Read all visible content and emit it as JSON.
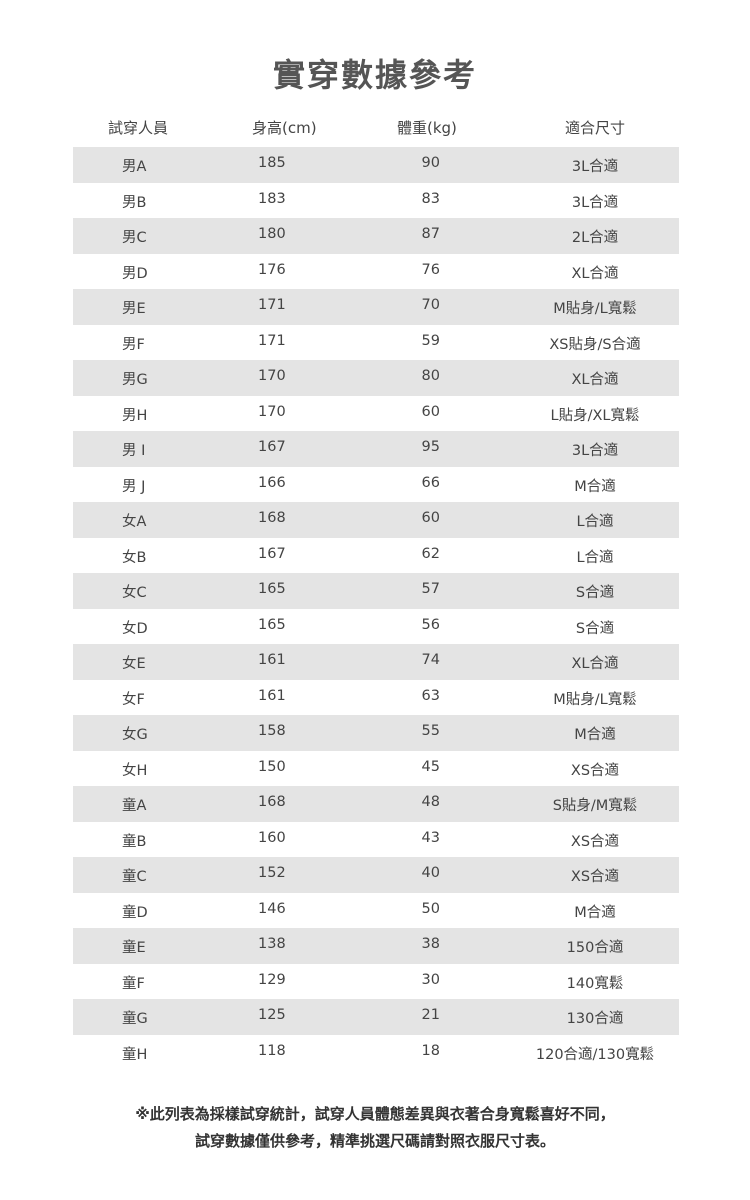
{
  "title": "實穿數據參考",
  "headers": [
    "試穿人員",
    "身高(cm)",
    "體重(kg)",
    "適合尺寸"
  ],
  "rows": [
    [
      "男A",
      "185",
      "90",
      "3L合適"
    ],
    [
      "男B",
      "183",
      "83",
      "3L合適"
    ],
    [
      "男C",
      "180",
      "87",
      "2L合適"
    ],
    [
      "男D",
      "176",
      "76",
      "XL合適"
    ],
    [
      "男E",
      "171",
      "70",
      "M貼身/L寬鬆"
    ],
    [
      "男F",
      "171",
      "59",
      "XS貼身/S合適"
    ],
    [
      "男G",
      "170",
      "80",
      "XL合適"
    ],
    [
      "男H",
      "170",
      "60",
      "L貼身/XL寬鬆"
    ],
    [
      "男 I",
      "167",
      "95",
      "3L合適"
    ],
    [
      "男 J",
      "166",
      "66",
      "M合適"
    ],
    [
      "女A",
      "168",
      "60",
      "L合適"
    ],
    [
      "女B",
      "167",
      "62",
      "L合適"
    ],
    [
      "女C",
      "165",
      "57",
      "S合適"
    ],
    [
      "女D",
      "165",
      "56",
      "S合適"
    ],
    [
      "女E",
      "161",
      "74",
      "XL合適"
    ],
    [
      "女F",
      "161",
      "63",
      "M貼身/L寬鬆"
    ],
    [
      "女G",
      "158",
      "55",
      "M合適"
    ],
    [
      "女H",
      "150",
      "45",
      "XS合適"
    ],
    [
      "童A",
      "168",
      "48",
      "S貼身/M寬鬆"
    ],
    [
      "童B",
      "160",
      "43",
      "XS合適"
    ],
    [
      "童C",
      "152",
      "40",
      "XS合適"
    ],
    [
      "童D",
      "146",
      "50",
      "M合適"
    ],
    [
      "童E",
      "138",
      "38",
      "150合適"
    ],
    [
      "童F",
      "129",
      "30",
      "140寬鬆"
    ],
    [
      "童G",
      "125",
      "21",
      "130合適"
    ],
    [
      "童H",
      "118",
      "18",
      "120合適/130寬鬆"
    ]
  ],
  "notes": [
    "※此列表為採樣試穿統計，試穿人員體態差異與衣著合身寬鬆喜好不同，",
    "試穿數據僅供參考，精準挑選尺碼請對照衣服尺寸表。"
  ],
  "colors": {
    "stripe": "#e4e4e4",
    "text": "#444444"
  }
}
